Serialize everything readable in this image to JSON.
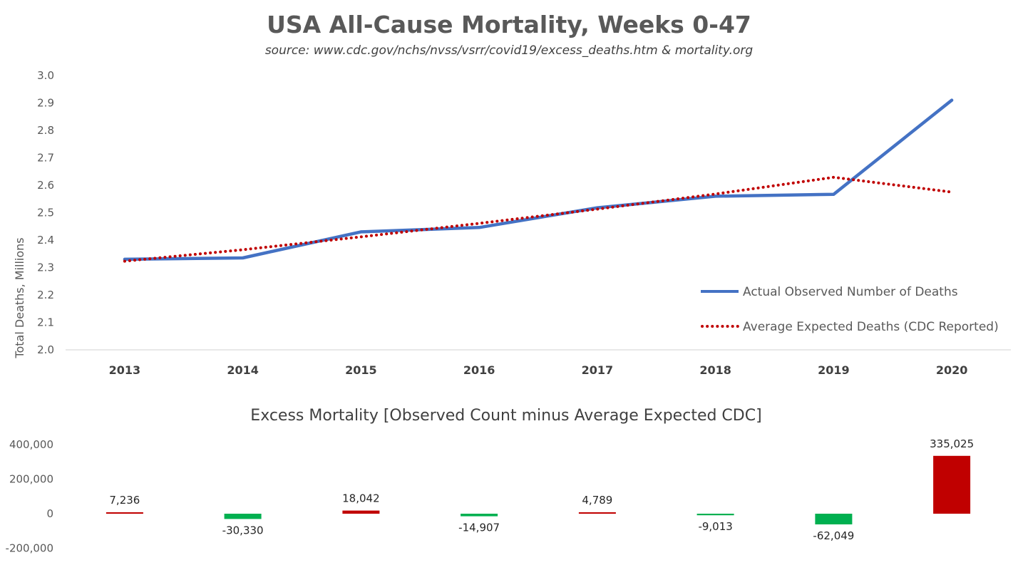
{
  "chart_data": [
    {
      "type": "line",
      "title": "USA All-Cause Mortality, Weeks 0-47",
      "subtitle": "source: www.cdc.gov/nchs/nvss/vsrr/covid19/excess_deaths.htm & mortality.org",
      "ylabel": "Total Deaths, Millions",
      "xlabel": "",
      "ylim": [
        2.0,
        3.0
      ],
      "yticks": [
        "2.0",
        "2.1",
        "2.2",
        "2.3",
        "2.4",
        "2.5",
        "2.6",
        "2.7",
        "2.8",
        "2.9",
        "3.0"
      ],
      "categories": [
        "2013",
        "2014",
        "2015",
        "2016",
        "2017",
        "2018",
        "2019",
        "2020"
      ],
      "legend_position": "bottom-right",
      "series": [
        {
          "name": "Actual Observed Number of Deaths",
          "style": "solid",
          "color": "#4472C4",
          "values": [
            2.33,
            2.335,
            2.43,
            2.446,
            2.518,
            2.56,
            2.567,
            2.91
          ]
        },
        {
          "name": "Average Expected Deaths (CDC Reported)",
          "style": "dotted",
          "color": "#C00000",
          "values": [
            2.323,
            2.365,
            2.412,
            2.461,
            2.513,
            2.568,
            2.629,
            2.575
          ]
        }
      ]
    },
    {
      "type": "bar",
      "title": "Excess Mortality [Observed Count minus Average Expected CDC]",
      "ylim": [
        -200000,
        400000
      ],
      "yticks": [
        "-200,000",
        "0",
        "200,000",
        "400,000"
      ],
      "categories": [
        "2013",
        "2014",
        "2015",
        "2016",
        "2017",
        "2018",
        "2019",
        "2020"
      ],
      "values": [
        7236,
        -30330,
        18042,
        -14907,
        4789,
        -9013,
        -62049,
        335025
      ],
      "labels": [
        "7,236",
        "-30,330",
        "18,042",
        "-14,907",
        "4,789",
        "-9,013",
        "-62,049",
        "335,025"
      ],
      "positive_color": "#C00000",
      "negative_color": "#00B050"
    }
  ]
}
